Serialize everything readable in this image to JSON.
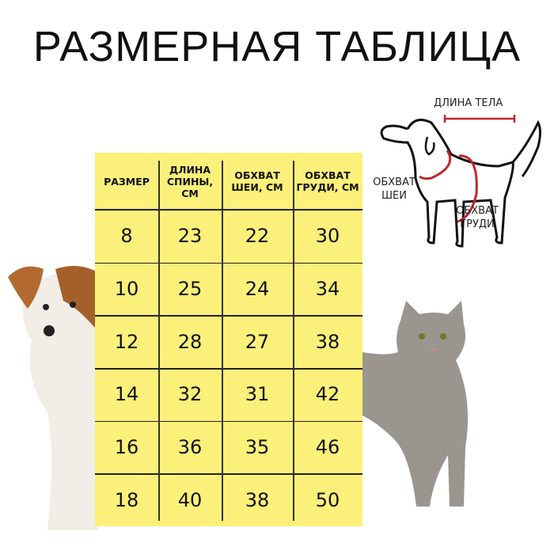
{
  "title": "РАЗМЕРНАЯ ТАБЛИЦА",
  "table": {
    "headers": [
      "РАЗМЕР",
      "ДЛИНА СПИНЫ, СМ",
      "ОБХВАТ ШЕИ, СМ",
      "ОБХВАТ ГРУДИ, СМ"
    ],
    "rows": [
      [
        "8",
        "23",
        "22",
        "30"
      ],
      [
        "10",
        "25",
        "24",
        "34"
      ],
      [
        "12",
        "28",
        "27",
        "38"
      ],
      [
        "14",
        "32",
        "31",
        "42"
      ],
      [
        "16",
        "36",
        "35",
        "46"
      ],
      [
        "18",
        "40",
        "38",
        "50"
      ]
    ]
  },
  "diagram": {
    "body_length": "ДЛИНА ТЕЛА",
    "neck_girth": "ОБХВАТ ШЕИ",
    "chest_girth": "ОБХВАТ ГРУДИ"
  },
  "colors": {
    "table_bg": "#fbf07a",
    "measure_lines": "#c0272d"
  }
}
